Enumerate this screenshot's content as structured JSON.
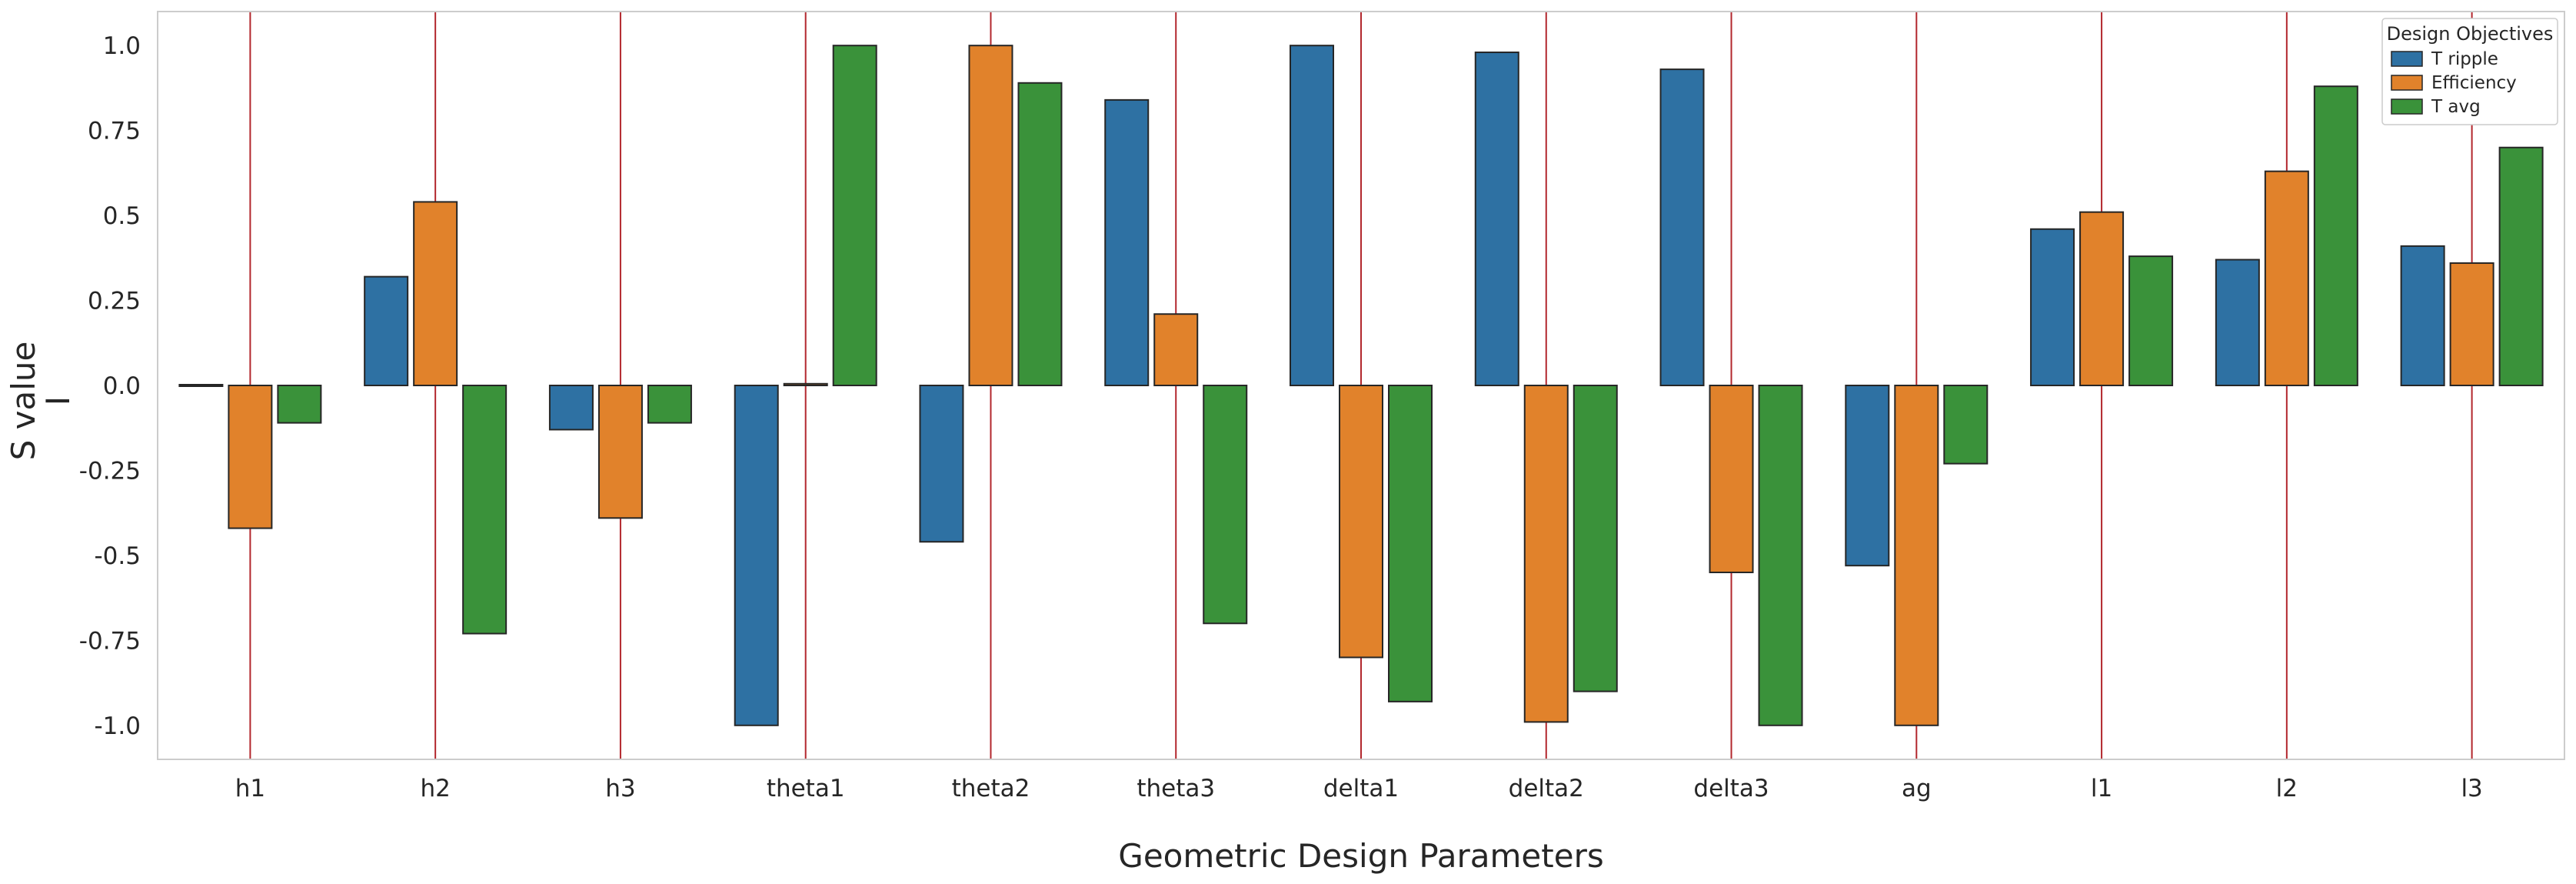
{
  "chart_data": {
    "type": "bar",
    "xlabel": "Geometric Design Parameters",
    "ylabel": "S value",
    "ylabel_marker": "I",
    "categories": [
      "h1",
      "h2",
      "h3",
      "theta1",
      "theta2",
      "theta3",
      "delta1",
      "delta2",
      "delta3",
      "ag",
      "l1",
      "l2",
      "l3"
    ],
    "yticks": [
      "-1.0",
      "-0.75",
      "-0.5",
      "-0.25",
      "0.0",
      "0.25",
      "0.5",
      "0.75",
      "1.0"
    ],
    "ytick_values": [
      -1.0,
      -0.75,
      -0.5,
      -0.25,
      0.0,
      0.25,
      0.5,
      0.75,
      1.0
    ],
    "ylim": [
      -1.1,
      1.1
    ],
    "grid": false,
    "category_lines": true,
    "legend": {
      "title": "Design Objectives",
      "placement": "top-right"
    },
    "series": [
      {
        "name": "T ripple",
        "color": "#2e71a3",
        "values": [
          0.0,
          0.32,
          -0.13,
          -1.0,
          -0.46,
          0.84,
          1.0,
          0.98,
          0.93,
          -0.53,
          0.46,
          0.37,
          0.41
        ]
      },
      {
        "name": "Efficiency",
        "color": "#e1822b",
        "values": [
          -0.42,
          0.54,
          -0.39,
          0.005,
          1.0,
          0.21,
          -0.8,
          -0.99,
          -0.55,
          -1.0,
          0.51,
          0.63,
          0.36
        ]
      },
      {
        "name": "T avg",
        "color": "#3a923a",
        "values": [
          -0.11,
          -0.73,
          -0.11,
          1.0,
          0.89,
          -0.7,
          -0.93,
          -0.9,
          -1.0,
          -0.23,
          0.38,
          0.88,
          0.7
        ]
      }
    ],
    "colors": {
      "category_line": "#b2272d",
      "bar_edge": "#262626",
      "frame": "#cccccc"
    }
  }
}
